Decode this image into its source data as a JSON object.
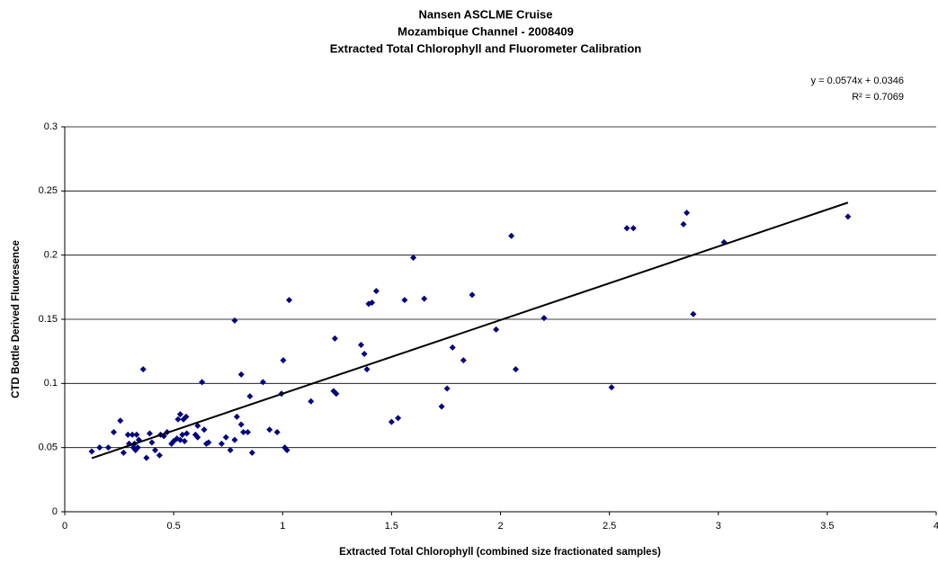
{
  "chart_data": {
    "type": "scatter",
    "title": [
      "Nansen ASCLME Cruise",
      "Mozambique Channel - 2008409",
      "Extracted Total Chlorophyll and Fluorometer Calibration"
    ],
    "annotations": [
      "y = 0.0574x + 0.0346",
      "R² = 0.7069"
    ],
    "x_label": "Extracted Total Chlorophyll (combined size fractionated samples)",
    "y_label": "CTD Bottle Derived Fluoresence",
    "color": "#000080",
    "trendline": {
      "slope": 0.0574,
      "intercept": 0.0346,
      "color": "#000000"
    },
    "x": [
      0.124,
      0.16,
      0.2,
      0.225,
      0.255,
      0.27,
      0.29,
      0.295,
      0.31,
      0.315,
      0.32,
      0.325,
      0.33,
      0.335,
      0.34,
      0.36,
      0.375,
      0.39,
      0.4,
      0.415,
      0.435,
      0.44,
      0.455,
      0.47,
      0.49,
      0.5,
      0.515,
      0.52,
      0.53,
      0.53,
      0.54,
      0.545,
      0.55,
      0.557,
      0.56,
      0.6,
      0.61,
      0.61,
      0.63,
      0.64,
      0.65,
      0.66,
      0.72,
      0.74,
      0.76,
      0.78,
      0.78,
      0.79,
      0.81,
      0.81,
      0.82,
      0.84,
      0.85,
      0.86,
      0.91,
      0.94,
      0.975,
      0.995,
      1.003,
      1.01,
      1.02,
      1.03,
      1.13,
      1.234,
      1.24,
      1.246,
      1.36,
      1.375,
      1.387,
      1.395,
      1.41,
      1.43,
      1.5,
      1.53,
      1.56,
      1.6,
      1.65,
      1.73,
      1.755,
      1.78,
      1.83,
      1.87,
      1.98,
      2.05,
      2.07,
      2.2,
      2.51,
      2.58,
      2.61,
      2.84,
      2.855,
      2.885,
      3.026,
      3.595
    ],
    "values": [
      0.047,
      0.05,
      0.05,
      0.062,
      0.071,
      0.046,
      0.06,
      0.053,
      0.06,
      0.05,
      0.053,
      0.048,
      0.06,
      0.05,
      0.056,
      0.111,
      0.042,
      0.061,
      0.054,
      0.048,
      0.044,
      0.06,
      0.059,
      0.062,
      0.053,
      0.055,
      0.057,
      0.072,
      0.056,
      0.076,
      0.06,
      0.072,
      0.055,
      0.074,
      0.061,
      0.06,
      0.067,
      0.058,
      0.101,
      0.064,
      0.053,
      0.054,
      0.053,
      0.058,
      0.048,
      0.149,
      0.056,
      0.074,
      0.107,
      0.068,
      0.062,
      0.062,
      0.09,
      0.046,
      0.101,
      0.064,
      0.062,
      0.092,
      0.118,
      0.05,
      0.048,
      0.165,
      0.086,
      0.094,
      0.135,
      0.092,
      0.13,
      0.123,
      0.111,
      0.162,
      0.163,
      0.172,
      0.07,
      0.073,
      0.165,
      0.198,
      0.166,
      0.082,
      0.096,
      0.128,
      0.118,
      0.169,
      0.142,
      0.215,
      0.111,
      0.151,
      0.097,
      0.221,
      0.221,
      0.224,
      0.233,
      0.154,
      0.21,
      0.23
    ],
    "xlim": [
      0,
      4
    ],
    "xticks": [
      0,
      0.5,
      1,
      1.5,
      2,
      2.5,
      3,
      3.5,
      4
    ],
    "ylim": [
      0,
      0.3
    ],
    "yticks": [
      0,
      0.05,
      0.1,
      0.15,
      0.2,
      0.25,
      0.3
    ],
    "grid": true
  }
}
